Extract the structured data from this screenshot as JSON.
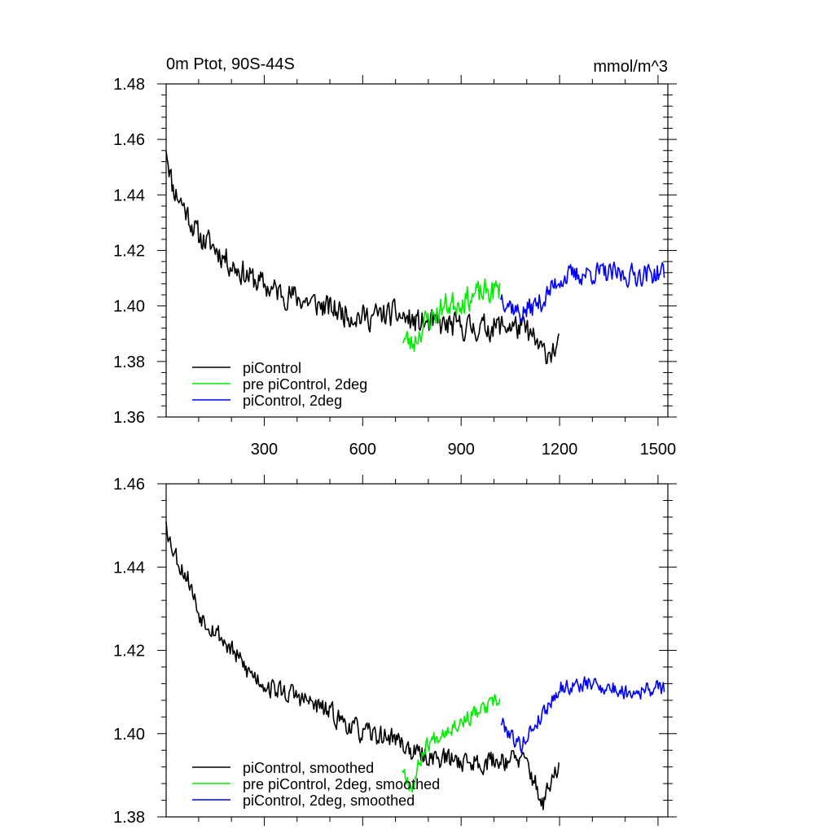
{
  "chart_data": [
    {
      "type": "line",
      "title": "0m Ptot, 90S-44S",
      "units": "mmol/m^3",
      "xlim": [
        1,
        1530
      ],
      "ylim": [
        1.36,
        1.48
      ],
      "xticks": [
        300,
        600,
        900,
        1200,
        1500
      ],
      "xtick_labels": [
        "300",
        "600",
        "900",
        "1200",
        "1500"
      ],
      "yticks": [
        1.36,
        1.38,
        1.4,
        1.42,
        1.44,
        1.46,
        1.48
      ],
      "ytick_labels": [
        "1.36",
        "1.38",
        "1.40",
        "1.42",
        "1.44",
        "1.46",
        "1.48"
      ],
      "legend_position": "bottom-left",
      "series": [
        {
          "name": "piControl",
          "color": "#000000",
          "x_start": 1,
          "x_end": 1200,
          "anchors_x": [
            1,
            20,
            50,
            100,
            150,
            200,
            260,
            320,
            400,
            500,
            600,
            700,
            760,
            850,
            950,
            1050,
            1100,
            1150,
            1200
          ],
          "anchors_y": [
            1.458,
            1.443,
            1.437,
            1.425,
            1.421,
            1.415,
            1.41,
            1.406,
            1.403,
            1.399,
            1.396,
            1.397,
            1.394,
            1.393,
            1.392,
            1.393,
            1.391,
            1.383,
            1.385
          ],
          "noise": 0.0065,
          "seed": 11
        },
        {
          "name": "pre piControl, 2deg",
          "color": "#00ee00",
          "x_start": 721,
          "x_end": 1020,
          "anchors_x": [
            721,
            750,
            790,
            850,
            900,
            950,
            1020
          ],
          "anchors_y": [
            1.389,
            1.386,
            1.394,
            1.4,
            1.402,
            1.404,
            1.406
          ],
          "noise": 0.0065,
          "seed": 23
        },
        {
          "name": "piControl, 2deg",
          "color": "#0000ff",
          "x_start": 1021,
          "x_end": 1520,
          "anchors_x": [
            1021,
            1080,
            1150,
            1200,
            1300,
            1400,
            1520
          ],
          "anchors_y": [
            1.404,
            1.397,
            1.402,
            1.41,
            1.412,
            1.411,
            1.412
          ],
          "noise": 0.0055,
          "seed": 37
        }
      ]
    },
    {
      "type": "line",
      "xlim": [
        1,
        1530
      ],
      "ylim": [
        1.38,
        1.46
      ],
      "xticks": [
        300,
        600,
        900,
        1200,
        1500
      ],
      "yticks": [
        1.38,
        1.4,
        1.42,
        1.44,
        1.46
      ],
      "ytick_labels": [
        "1.38",
        "1.40",
        "1.42",
        "1.44",
        "1.46"
      ],
      "legend_position": "bottom-left",
      "series": [
        {
          "name": "piControl, smoothed",
          "color": "#000000",
          "x_start": 1,
          "x_end": 1200,
          "anchors_x": [
            1,
            10,
            40,
            70,
            100,
            150,
            200,
            250,
            320,
            400,
            500,
            600,
            700,
            760,
            850,
            950,
            1050,
            1100,
            1150,
            1175,
            1200
          ],
          "anchors_y": [
            1.452,
            1.447,
            1.441,
            1.437,
            1.429,
            1.425,
            1.42,
            1.415,
            1.411,
            1.409,
            1.405,
            1.4,
            1.399,
            1.395,
            1.394,
            1.393,
            1.394,
            1.393,
            1.383,
            1.388,
            1.393
          ],
          "noise": 0.0035,
          "seed": 53
        },
        {
          "name": "pre piControl, 2deg, smoothed",
          "color": "#00ee00",
          "x_start": 721,
          "x_end": 1020,
          "anchors_x": [
            721,
            750,
            790,
            850,
            900,
            950,
            1020
          ],
          "anchors_y": [
            1.392,
            1.387,
            1.397,
            1.401,
            1.403,
            1.405,
            1.408
          ],
          "noise": 0.0028,
          "seed": 67
        },
        {
          "name": "piControl, 2deg, smoothed",
          "color": "#0000ff",
          "x_start": 1021,
          "x_end": 1520,
          "anchors_x": [
            1021,
            1080,
            1150,
            1200,
            1300,
            1400,
            1520
          ],
          "anchors_y": [
            1.403,
            1.397,
            1.405,
            1.411,
            1.412,
            1.41,
            1.411
          ],
          "noise": 0.0027,
          "seed": 79
        }
      ]
    }
  ]
}
